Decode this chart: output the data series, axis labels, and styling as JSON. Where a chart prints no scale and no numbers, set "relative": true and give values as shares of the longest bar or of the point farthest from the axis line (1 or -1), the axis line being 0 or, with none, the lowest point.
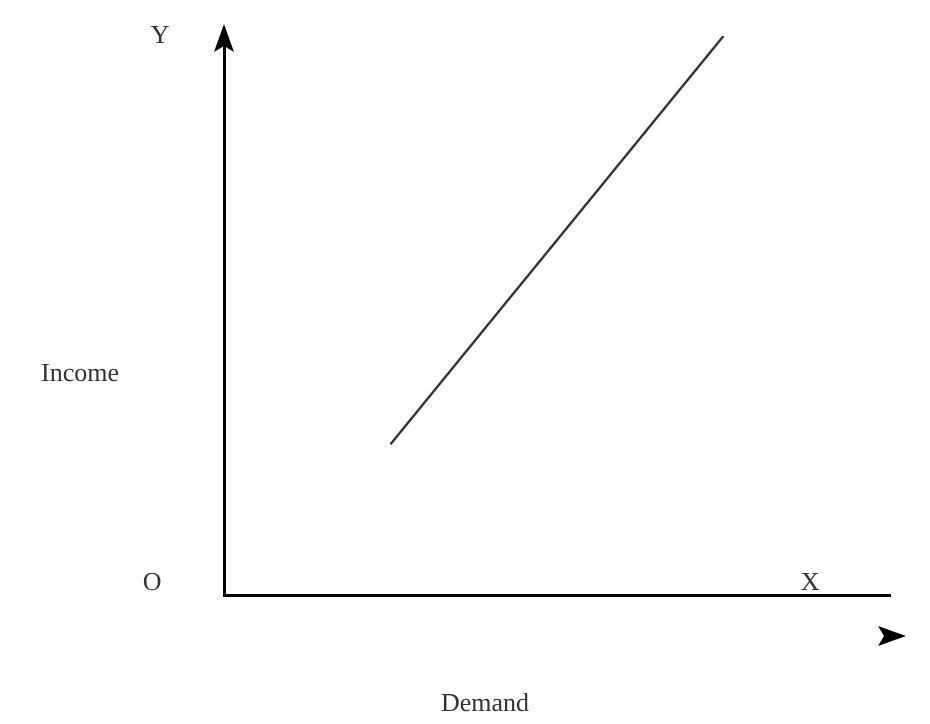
{
  "chart_data": {
    "type": "line",
    "relative": true,
    "xlabel": "Demand",
    "ylabel": "Income",
    "annotations": [
      "Y",
      "X",
      "O"
    ],
    "categories": [
      null,
      null
    ],
    "series": [
      {
        "color": "#333333",
        "values": [
          0.27,
          1
        ]
      }
    ],
    "legend": false,
    "grid": false,
    "marker": "none"
  }
}
